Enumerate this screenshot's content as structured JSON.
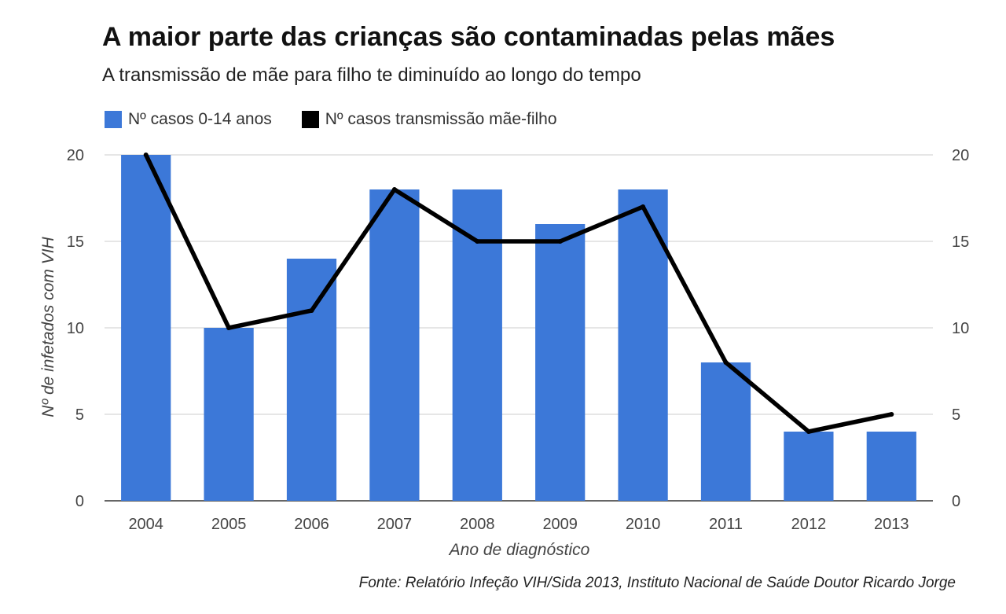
{
  "chart_data": {
    "type": "bar",
    "title": "A maior parte das crianças são contaminadas pelas mães",
    "subtitle": "A transmissão de mãe para filho te diminuído ao longo do tempo",
    "xlabel": "Ano de diagnóstico",
    "ylabel": "Nº de infetados com VIH",
    "source": "Fonte: Relatório Infeção VIH/Sida 2013, Instituto Nacional de Saúde Doutor Ricardo Jorge",
    "categories": [
      "2004",
      "2005",
      "2006",
      "2007",
      "2008",
      "2009",
      "2010",
      "2011",
      "2012",
      "2013"
    ],
    "ylim": [
      0,
      20
    ],
    "yticks": [
      0,
      5,
      10,
      15,
      20
    ],
    "grid": true,
    "legend_position": "top-left",
    "series": [
      {
        "name": "Nº casos 0-14 anos",
        "type": "bar",
        "color": "#3c78d8",
        "values": [
          20,
          10,
          14,
          18,
          18,
          16,
          18,
          8,
          4,
          4
        ]
      },
      {
        "name": "Nº casos transmissão mãe-filho",
        "type": "line",
        "color": "#000000",
        "values": [
          20,
          10,
          11,
          18,
          15,
          15,
          17,
          8,
          4,
          5
        ]
      }
    ]
  }
}
